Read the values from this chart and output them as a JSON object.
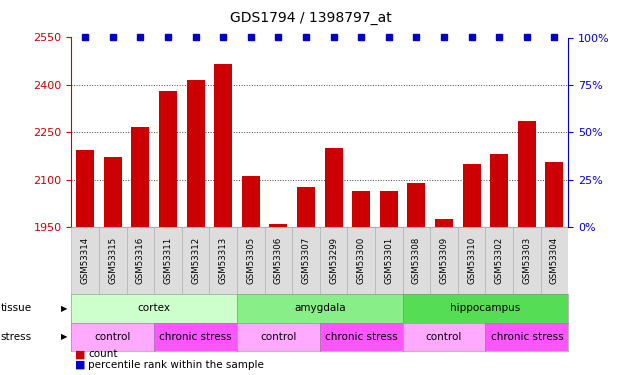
{
  "title": "GDS1794 / 1398797_at",
  "samples": [
    "GSM53314",
    "GSM53315",
    "GSM53316",
    "GSM53311",
    "GSM53312",
    "GSM53313",
    "GSM53305",
    "GSM53306",
    "GSM53307",
    "GSM53299",
    "GSM53300",
    "GSM53301",
    "GSM53308",
    "GSM53309",
    "GSM53310",
    "GSM53302",
    "GSM53303",
    "GSM53304"
  ],
  "counts": [
    2195,
    2170,
    2265,
    2380,
    2415,
    2465,
    2110,
    1960,
    2075,
    2200,
    2065,
    2065,
    2090,
    1975,
    2150,
    2180,
    2285,
    2155
  ],
  "bar_color": "#CC0000",
  "dot_color": "#0000CC",
  "ymin": 1950,
  "ymax": 2550,
  "yticks": [
    1950,
    2100,
    2250,
    2400,
    2550
  ],
  "y2min": 0,
  "y2max": 100,
  "y2ticks": [
    0,
    25,
    50,
    75,
    100
  ],
  "y2ticklabels": [
    "0%",
    "25%",
    "50%",
    "75%",
    "100%"
  ],
  "tissue_groups": [
    {
      "label": "cortex",
      "start": 0,
      "end": 6,
      "color": "#CCFFCC"
    },
    {
      "label": "amygdala",
      "start": 6,
      "end": 12,
      "color": "#88EE88"
    },
    {
      "label": "hippocampus",
      "start": 12,
      "end": 18,
      "color": "#55DD55"
    }
  ],
  "stress_groups": [
    {
      "label": "control",
      "start": 0,
      "end": 3,
      "color": "#FFAAFF"
    },
    {
      "label": "chronic stress",
      "start": 3,
      "end": 6,
      "color": "#FF55FF"
    },
    {
      "label": "control",
      "start": 6,
      "end": 9,
      "color": "#FFAAFF"
    },
    {
      "label": "chronic stress",
      "start": 9,
      "end": 12,
      "color": "#FF55FF"
    },
    {
      "label": "control",
      "start": 12,
      "end": 15,
      "color": "#FFAAFF"
    },
    {
      "label": "chronic stress",
      "start": 15,
      "end": 18,
      "color": "#FF55FF"
    }
  ],
  "left_axis_color": "#CC0000",
  "right_axis_color": "#0000CC",
  "chart_bg": "#FFFFFF",
  "sample_bg": "#DDDDDD",
  "legend_count_color": "#CC0000",
  "legend_dot_color": "#0000CC",
  "n": 18
}
